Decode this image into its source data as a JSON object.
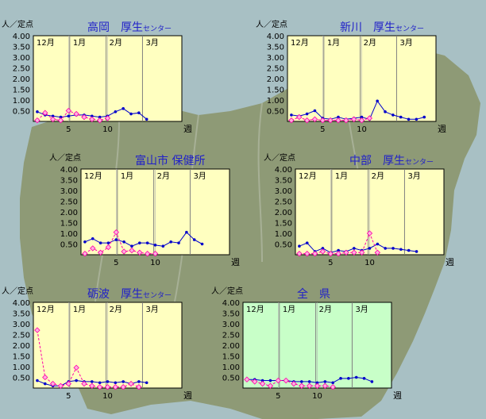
{
  "labels": {
    "unit": "人／定点",
    "week": "週"
  },
  "colors": {
    "sea": "#a8c0c4",
    "land": "#8e9a76",
    "plot_bg_regional": "#ffffc0",
    "plot_bg_prefecture": "#c8ffc8",
    "title": "#2020c8",
    "current_season": "#0000cc",
    "previous_season": "#ff00aa",
    "month_divider": "#808080"
  },
  "chart_data": [
    {
      "type": "line",
      "name": "takaoka",
      "title": "高岡　厚生センター",
      "title_main": "高岡　厚生",
      "title_small": "センター",
      "ylabel": "人／定点",
      "xlabel": "週",
      "ylim": [
        0,
        4
      ],
      "y_ticks": [
        "4.00",
        "3.50",
        "3.00",
        "2.50",
        "2.00",
        "1.50",
        "1.00",
        "0.50"
      ],
      "x_ticks": [
        5,
        10
      ],
      "months": [
        "12月",
        "1月",
        "2月",
        "3月"
      ],
      "series": [
        {
          "role": "current",
          "values": [
            0.45,
            0.3,
            0.25,
            0.2,
            0.25,
            0.3,
            0.3,
            0.25,
            0.2,
            0.25,
            0.45,
            0.6,
            0.35,
            0.4,
            0.1
          ]
        },
        {
          "role": "previous",
          "values": [
            0.05,
            0.4,
            0.1,
            0.05,
            0.5,
            0.35,
            0.2,
            0.1,
            0.05,
            0.15
          ]
        }
      ]
    },
    {
      "type": "line",
      "name": "shinkawa",
      "title": "新川　厚生センター",
      "title_main": "新川　厚生",
      "title_small": "センター",
      "ylabel": "人／定点",
      "xlabel": "週",
      "ylim": [
        0,
        4
      ],
      "y_ticks": [
        "4.00",
        "3.50",
        "3.00",
        "2.50",
        "2.00",
        "1.50",
        "1.00",
        "0.50"
      ],
      "x_ticks": [
        5,
        10
      ],
      "months": [
        "12月",
        "1月",
        "2月",
        "3月"
      ],
      "series": [
        {
          "role": "current",
          "values": [
            0.3,
            0.25,
            0.35,
            0.5,
            0.15,
            0.1,
            0.2,
            0.1,
            0.15,
            0.2,
            0.1,
            0.95,
            0.45,
            0.3,
            0.2,
            0.1,
            0.1,
            0.2
          ]
        },
        {
          "role": "previous",
          "values": [
            0.05,
            0.2,
            0.05,
            0.1,
            0.05,
            0.05,
            0.05,
            0.05,
            0.1,
            0.05,
            0.15
          ]
        }
      ]
    },
    {
      "type": "line",
      "name": "toyama-city",
      "title": "富山市 保健所",
      "title_main": "富山市 保健所",
      "title_small": "",
      "ylabel": "人／定点",
      "xlabel": "週",
      "ylim": [
        0,
        4
      ],
      "y_ticks": [
        "4.00",
        "3.50",
        "3.00",
        "2.50",
        "2.00",
        "1.50",
        "1.00",
        "0.50"
      ],
      "x_ticks": [
        5,
        10
      ],
      "months": [
        "12月",
        "1月",
        "2月",
        "3月"
      ],
      "series": [
        {
          "role": "current",
          "values": [
            0.6,
            0.75,
            0.55,
            0.55,
            0.7,
            0.6,
            0.4,
            0.55,
            0.55,
            0.45,
            0.4,
            0.6,
            0.55,
            1.05,
            0.7,
            0.5
          ]
        },
        {
          "role": "previous",
          "values": [
            0.05,
            0.3,
            0.1,
            0.35,
            1.05,
            0.15,
            0.2,
            0.1,
            0.05,
            0.05
          ]
        }
      ]
    },
    {
      "type": "line",
      "name": "chubu",
      "title": "中部　厚生センター",
      "title_main": "中部　厚生",
      "title_small": "センター",
      "ylabel": "人／定点",
      "xlabel": "週",
      "ylim": [
        0,
        4
      ],
      "y_ticks": [
        "4.00",
        "3.50",
        "3.00",
        "2.50",
        "2.00",
        "1.50",
        "1.00",
        "0.50"
      ],
      "x_ticks": [
        5,
        10
      ],
      "months": [
        "12月",
        "1月",
        "2月",
        "3月"
      ],
      "series": [
        {
          "role": "current",
          "values": [
            0.4,
            0.55,
            0.15,
            0.3,
            0.1,
            0.2,
            0.15,
            0.3,
            0.2,
            0.3,
            0.5,
            0.3,
            0.3,
            0.25,
            0.2,
            0.15
          ]
        },
        {
          "role": "previous",
          "values": [
            0.05,
            0.05,
            0.05,
            0.15,
            0.05,
            0.05,
            0.1,
            0.1,
            0.1,
            1.0,
            0.1
          ]
        }
      ]
    },
    {
      "type": "line",
      "name": "tonami",
      "title": "砺波　厚生センター",
      "title_main": "砺波　厚生",
      "title_small": "センター",
      "ylabel": "人／定点",
      "xlabel": "週",
      "ylim": [
        0,
        4
      ],
      "y_ticks": [
        "4.00",
        "3.50",
        "3.00",
        "2.50",
        "2.00",
        "1.50",
        "1.00",
        "0.50"
      ],
      "x_ticks": [
        5,
        10
      ],
      "months": [
        "12月",
        "1月",
        "2月",
        "3月"
      ],
      "series": [
        {
          "role": "current",
          "values": [
            0.35,
            0.2,
            0.1,
            0.1,
            0.3,
            0.35,
            0.3,
            0.3,
            0.25,
            0.3,
            0.25,
            0.3,
            0.2,
            0.3,
            0.25
          ]
        },
        {
          "role": "previous",
          "values": [
            2.7,
            0.5,
            0.2,
            0.1,
            0.2,
            0.95,
            0.2,
            0.1,
            0.05,
            0.05,
            0.05,
            0.05,
            0.2,
            0.05
          ]
        }
      ]
    },
    {
      "type": "line",
      "name": "prefecture",
      "title": "全　県",
      "title_main": "全　県",
      "title_small": "",
      "ylabel": "人／定点",
      "xlabel": "週",
      "ylim": [
        0,
        4
      ],
      "y_ticks": [
        "4.00",
        "3.50",
        "3.00",
        "2.50",
        "2.00",
        "1.50",
        "1.00",
        "0.50"
      ],
      "x_ticks": [
        5,
        10
      ],
      "months": [
        "12月",
        "1月",
        "2月",
        "3月"
      ],
      "series": [
        {
          "role": "current",
          "values": [
            0.4,
            0.4,
            0.35,
            0.35,
            0.35,
            0.35,
            0.3,
            0.3,
            0.3,
            0.25,
            0.3,
            0.25,
            0.45,
            0.45,
            0.5,
            0.45,
            0.3
          ]
        },
        {
          "role": "previous",
          "values": [
            0.4,
            0.3,
            0.2,
            0.1,
            0.35,
            0.35,
            0.2,
            0.1,
            0.1,
            0.1,
            0.1,
            0.05
          ]
        }
      ]
    }
  ]
}
